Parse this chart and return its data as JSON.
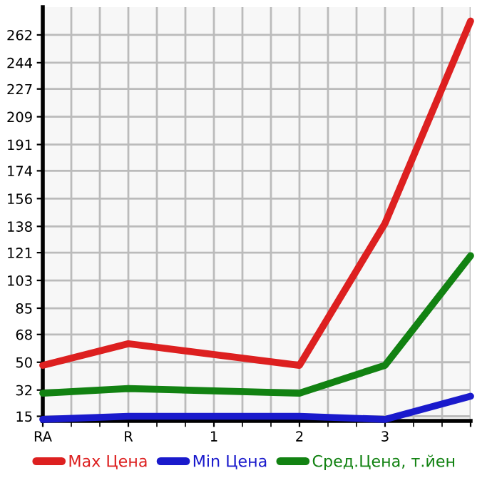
{
  "chart_data": {
    "type": "line",
    "categories": [
      "RA",
      "R",
      "1",
      "2",
      "3",
      null
    ],
    "series": [
      {
        "name": "Max Цена",
        "color": "#dd2020",
        "values": [
          48,
          62,
          null,
          48,
          140,
          271
        ]
      },
      {
        "name": "Min Цена",
        "color": "#1a1acc",
        "values": [
          13,
          15,
          null,
          15,
          13,
          28
        ]
      },
      {
        "name": "Сред.Цена, т.йен",
        "color": "#128212",
        "values": [
          30,
          33,
          null,
          30,
          48,
          119
        ]
      }
    ],
    "ylim": [
      12,
      280
    ],
    "yticks": [
      15,
      32,
      50,
      68,
      85,
      103,
      121,
      138,
      156,
      174,
      191,
      209,
      227,
      244,
      262
    ],
    "grid": true,
    "legend": "bottom",
    "marker": "none",
    "line_style": "solid"
  }
}
